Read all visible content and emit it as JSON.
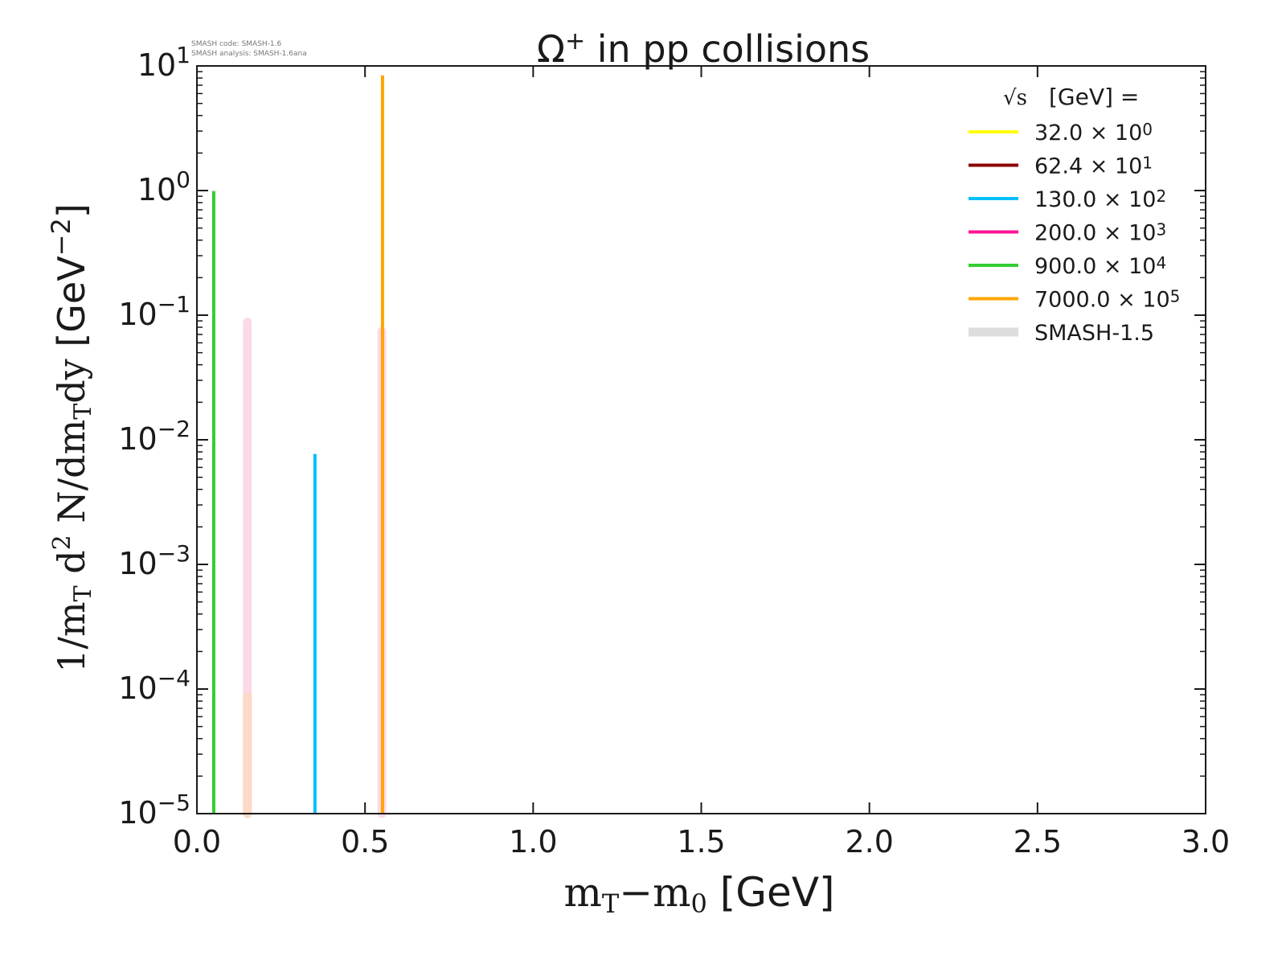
{
  "chart_data": {
    "type": "line",
    "title": "Ω⁺ in pp collisions",
    "title_base": "Ω",
    "title_sup": "+",
    "title_rest": " in pp collisions",
    "watermark": [
      "SMASH code:      SMASH-1.6",
      "SMASH analysis: SMASH-1.6ana"
    ],
    "xlabel": "m_T−m_0 [GeV]",
    "ylabel": "1/m_T d^2 N/dm_T dy [GeV^-2]",
    "xlim": [
      0,
      3.0
    ],
    "ylim": [
      1e-05,
      10
    ],
    "yscale": "log",
    "x_ticks": [
      "0.0",
      "0.5",
      "1.0",
      "1.5",
      "2.0",
      "2.5",
      "3.0"
    ],
    "x_tick_values": [
      0,
      0.5,
      1.0,
      1.5,
      2.0,
      2.5,
      3.0
    ],
    "y_tick_exponents": [
      -5,
      -4,
      -3,
      -2,
      -1,
      0,
      1
    ],
    "grid": false,
    "legend": {
      "placement": "top-right",
      "title": "[GeV] =",
      "title_symbol": "√s",
      "entries": [
        {
          "label": "32.0",
          "exp": "0",
          "color": "#ffff00"
        },
        {
          "label": "62.4",
          "exp": "1",
          "color": "#8b0000"
        },
        {
          "label": "130.0",
          "exp": "2",
          "color": "#00bfff"
        },
        {
          "label": "200.0",
          "exp": "3",
          "color": "#ff1493"
        },
        {
          "label": "900.0",
          "exp": "4",
          "color": "#32cd32"
        },
        {
          "label": "7000.0",
          "exp": "5",
          "color": "#ffa500"
        },
        {
          "label": "SMASH-1.5",
          "exp": "",
          "color": "#dddddd",
          "reference": true
        }
      ]
    },
    "reference_series": [
      {
        "name": "SMASH-1.5 (200.0)",
        "color": "#fcd9e9",
        "x": 0.15,
        "y": [
          1e-05,
          0.088
        ]
      },
      {
        "name": "SMASH-1.5 (62.4)",
        "color": "#fdd9c8",
        "x": 0.15,
        "y": [
          1e-05,
          8.7e-05
        ]
      },
      {
        "name": "SMASH-1.5 (7000.0)",
        "color": "#fcd9e9",
        "x": 0.55,
        "y": [
          1e-05,
          0.074
        ]
      }
    ],
    "series": [
      {
        "name": "900.0 × 10^4",
        "color": "#32cd32",
        "x": 0.05,
        "y": [
          1e-05,
          0.99
        ]
      },
      {
        "name": "130.0 × 10^2",
        "color": "#00bfff",
        "x": 0.351,
        "y": [
          1e-05,
          0.0077
        ]
      },
      {
        "name": "7000.0 × 10^5",
        "color": "#ffa500",
        "x": 0.552,
        "y": [
          1e-05,
          8.4
        ]
      }
    ]
  }
}
